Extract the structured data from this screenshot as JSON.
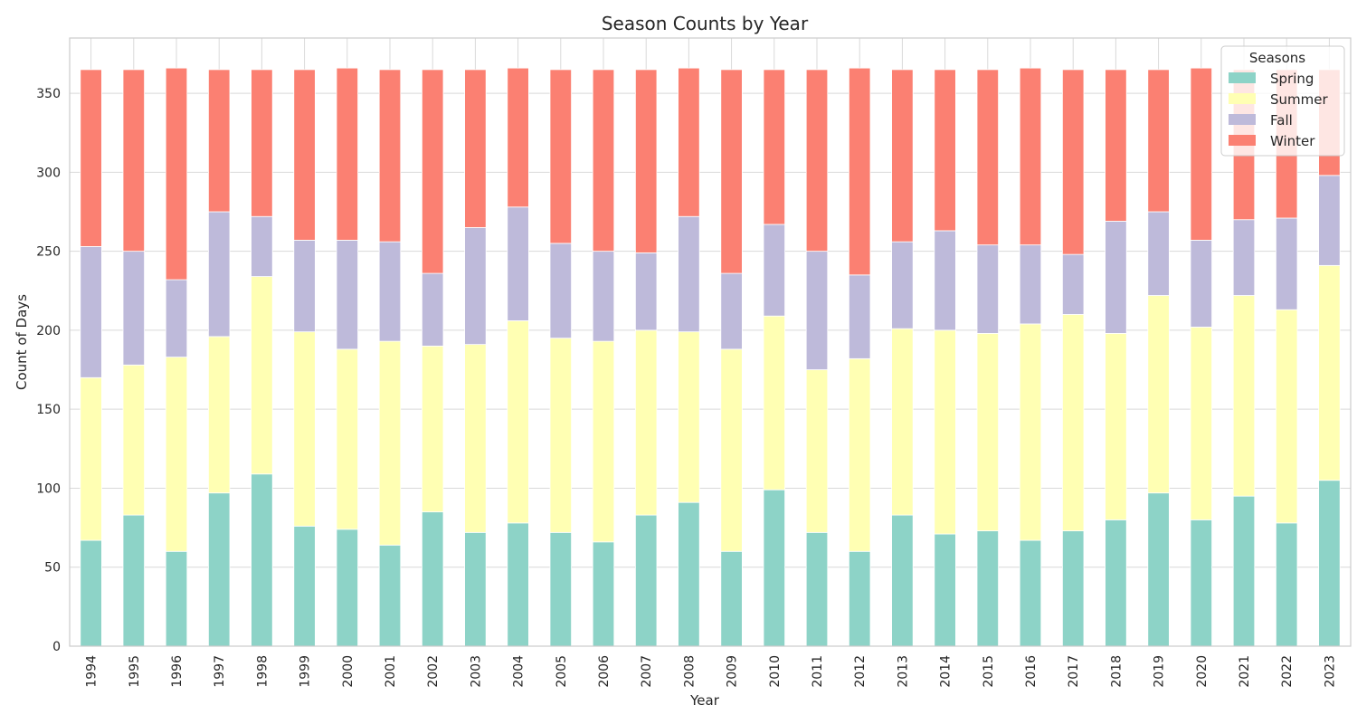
{
  "chart_data": {
    "type": "bar",
    "stacked": true,
    "title": "Season Counts by Year",
    "xlabel": "Year",
    "ylabel": "Count of Days",
    "ylim": [
      0,
      385
    ],
    "yticks": [
      0,
      50,
      100,
      150,
      200,
      250,
      300,
      350
    ],
    "grid": true,
    "legend": {
      "title": "Seasons",
      "placement": "top-right"
    },
    "categories": [
      "1994",
      "1995",
      "1996",
      "1997",
      "1998",
      "1999",
      "2000",
      "2001",
      "2002",
      "2003",
      "2004",
      "2005",
      "2006",
      "2007",
      "2008",
      "2009",
      "2010",
      "2011",
      "2012",
      "2013",
      "2014",
      "2015",
      "2016",
      "2017",
      "2018",
      "2019",
      "2020",
      "2021",
      "2022",
      "2023"
    ],
    "series": [
      {
        "name": "Spring",
        "color": "#8dd3c7",
        "values": [
          67,
          83,
          60,
          97,
          109,
          76,
          74,
          64,
          85,
          72,
          78,
          72,
          66,
          83,
          91,
          60,
          99,
          72,
          60,
          83,
          71,
          73,
          67,
          73,
          80,
          97,
          80,
          95,
          78,
          105
        ]
      },
      {
        "name": "Summer",
        "color": "#ffffb3",
        "values": [
          103,
          95,
          123,
          99,
          125,
          123,
          114,
          129,
          105,
          119,
          128,
          123,
          127,
          117,
          108,
          128,
          110,
          103,
          122,
          118,
          129,
          125,
          137,
          137,
          118,
          125,
          122,
          127,
          135,
          136
        ]
      },
      {
        "name": "Fall",
        "color": "#bebada",
        "values": [
          83,
          72,
          49,
          79,
          38,
          58,
          69,
          63,
          46,
          74,
          72,
          60,
          57,
          49,
          73,
          48,
          58,
          75,
          53,
          55,
          63,
          56,
          50,
          38,
          71,
          53,
          55,
          48,
          58,
          57
        ]
      },
      {
        "name": "Winter",
        "color": "#fb8072",
        "values": [
          112,
          115,
          134,
          90,
          93,
          108,
          109,
          109,
          129,
          100,
          88,
          110,
          115,
          116,
          94,
          129,
          98,
          115,
          131,
          109,
          102,
          111,
          112,
          117,
          96,
          90,
          109,
          95,
          94,
          67
        ]
      }
    ]
  }
}
